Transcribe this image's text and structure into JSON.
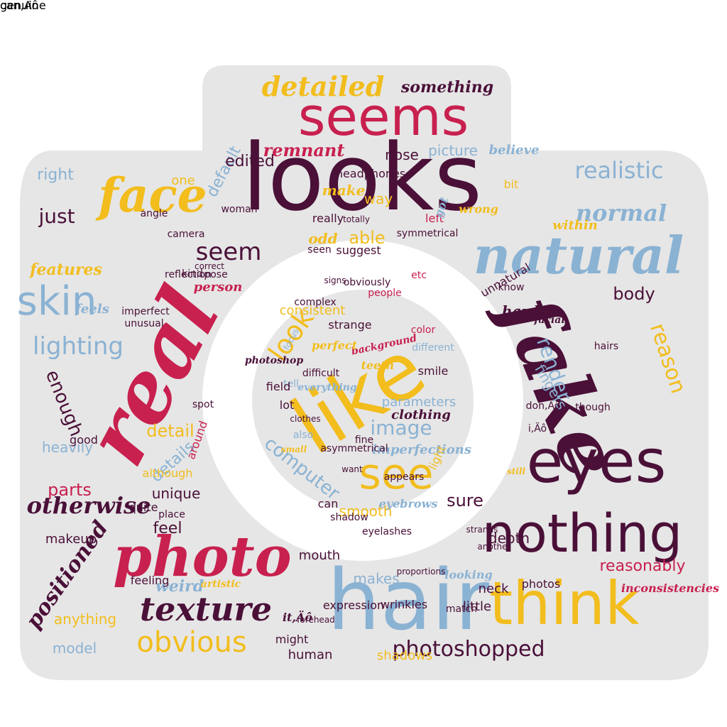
{
  "colors": {
    "background": "#ffffff",
    "camera_fill": "#e6e6e6",
    "crimson": "#c8204f",
    "purple": "#4a1038",
    "gold": "#f2bd1d",
    "blue": "#8ab2d3",
    "mauve": "#b04a6a"
  },
  "words": [
    {
      "t": "looks",
      "c": "purple",
      "s": "plain",
      "a": 0
    },
    {
      "t": "real",
      "c": "crimson",
      "s": "script",
      "a": -62
    },
    {
      "t": "fake",
      "c": "purple",
      "s": "script",
      "a": 68
    },
    {
      "t": "hair",
      "c": "blue",
      "s": "plain",
      "a": 0
    },
    {
      "t": "natural",
      "c": "blue",
      "s": "script",
      "a": 0
    },
    {
      "t": "like",
      "c": "gold",
      "s": "plain",
      "a": -32
    },
    {
      "t": "seems",
      "c": "crimson",
      "s": "plain",
      "a": 0
    },
    {
      "t": "eyes",
      "c": "purple",
      "s": "plain",
      "a": 0
    },
    {
      "t": "nothing",
      "c": "purple",
      "s": "plain",
      "a": 0
    },
    {
      "t": "think",
      "c": "gold",
      "s": "plain",
      "a": 0
    },
    {
      "t": "photo",
      "c": "crimson",
      "s": "script",
      "a": 0
    },
    {
      "t": "face",
      "c": "gold",
      "s": "script",
      "a": 0
    },
    {
      "t": "skin",
      "c": "blue",
      "s": "plain",
      "a": 0
    },
    {
      "t": "texture",
      "c": "purple",
      "s": "script",
      "a": 0
    },
    {
      "t": "obvious",
      "c": "gold",
      "s": "plain",
      "a": 0
    },
    {
      "t": "see",
      "c": "gold",
      "s": "plain",
      "a": 0
    },
    {
      "t": "look",
      "c": "gold",
      "s": "plain",
      "a": -55
    },
    {
      "t": "detailed",
      "c": "gold",
      "s": "script",
      "a": 0
    },
    {
      "t": "lighting",
      "c": "blue",
      "s": "plain",
      "a": 0
    },
    {
      "t": "otherwise",
      "c": "purple",
      "s": "script",
      "a": 0
    },
    {
      "t": "photoshopped",
      "c": "purple",
      "s": "plain",
      "a": 0
    },
    {
      "t": "positioned",
      "c": "purple",
      "s": "script",
      "a": -55
    },
    {
      "t": "reason",
      "c": "gold",
      "s": "plain",
      "a": 72
    },
    {
      "t": "realistic",
      "c": "blue",
      "s": "plain",
      "a": 0
    },
    {
      "t": "normal",
      "c": "blue",
      "s": "script",
      "a": 0
    },
    {
      "t": "reasonably",
      "c": "crimson",
      "s": "plain",
      "a": 0
    },
    {
      "t": "image",
      "c": "blue",
      "s": "plain",
      "a": 0
    },
    {
      "t": "computer",
      "c": "blue",
      "s": "plain",
      "a": 38
    },
    {
      "t": "seem",
      "c": "purple",
      "s": "plain",
      "a": 0
    },
    {
      "t": "just",
      "c": "purple",
      "s": "plain",
      "a": 0
    },
    {
      "t": "default",
      "c": "blue",
      "s": "plain",
      "a": -62
    },
    {
      "t": "remnant",
      "c": "crimson",
      "s": "script",
      "a": 0
    },
    {
      "t": "something",
      "c": "purple",
      "s": "script",
      "a": 0
    },
    {
      "t": "edited",
      "c": "purple",
      "s": "plain",
      "a": 0
    },
    {
      "t": "picture",
      "c": "blue",
      "s": "plain",
      "a": 0
    },
    {
      "t": "believe",
      "c": "blue",
      "s": "script",
      "a": 0
    },
    {
      "t": "nose",
      "c": "purple",
      "s": "plain",
      "a": 0
    },
    {
      "t": "right",
      "c": "blue",
      "s": "plain",
      "a": 0
    },
    {
      "t": "one",
      "c": "gold",
      "s": "plain",
      "a": 0
    },
    {
      "t": "make",
      "c": "gold",
      "s": "script",
      "a": 0
    },
    {
      "t": "way",
      "c": "gold",
      "s": "plain",
      "a": 0
    },
    {
      "t": "wrong",
      "c": "gold",
      "s": "script",
      "a": 0
    },
    {
      "t": "within",
      "c": "gold",
      "s": "script",
      "a": 0
    },
    {
      "t": "features",
      "c": "gold",
      "s": "script",
      "a": 0
    },
    {
      "t": "able",
      "c": "gold",
      "s": "plain",
      "a": 0
    },
    {
      "t": "odd",
      "c": "gold",
      "s": "script",
      "a": 0
    },
    {
      "t": "body",
      "c": "purple",
      "s": "plain",
      "a": 0
    },
    {
      "t": "hard",
      "c": "purple",
      "s": "script",
      "a": 0
    },
    {
      "t": "feels",
      "c": "blue",
      "s": "script",
      "a": 0
    },
    {
      "t": "enough",
      "c": "purple",
      "s": "plain",
      "a": 68
    },
    {
      "t": "detail",
      "c": "gold",
      "s": "plain",
      "a": 0
    },
    {
      "t": "details",
      "c": "blue",
      "s": "plain",
      "a": -42
    },
    {
      "t": "parts",
      "c": "crimson",
      "s": "plain",
      "a": 0
    },
    {
      "t": "heavily",
      "c": "blue",
      "s": "plain",
      "a": 0
    },
    {
      "t": "unique",
      "c": "purple",
      "s": "plain",
      "a": 0
    },
    {
      "t": "feel",
      "c": "purple",
      "s": "plain",
      "a": 0
    },
    {
      "t": "sure",
      "c": "purple",
      "s": "plain",
      "a": 0
    },
    {
      "t": "depth",
      "c": "purple",
      "s": "plain",
      "a": 0
    },
    {
      "t": "render",
      "c": "blue",
      "s": "plain",
      "a": 70
    },
    {
      "t": "fingers",
      "c": "blue",
      "s": "plain",
      "a": 60
    },
    {
      "t": "unnatural",
      "c": "purple",
      "s": "plain",
      "a": -30
    },
    {
      "t": "makeup",
      "c": "purple",
      "s": "plain",
      "a": 0
    },
    {
      "t": "weird",
      "c": "blue",
      "s": "script",
      "a": 0
    },
    {
      "t": "makes",
      "c": "blue",
      "s": "plain",
      "a": 0
    },
    {
      "t": "mouth",
      "c": "purple",
      "s": "plain",
      "a": 0
    },
    {
      "t": "anything",
      "c": "gold",
      "s": "plain",
      "a": 0
    },
    {
      "t": "model",
      "c": "blue",
      "s": "plain",
      "a": 0
    },
    {
      "t": "human",
      "c": "purple",
      "s": "plain",
      "a": 0
    },
    {
      "t": "shadows",
      "c": "gold",
      "s": "plain",
      "a": 0
    },
    {
      "t": "person",
      "c": "crimson",
      "s": "script",
      "a": 0
    },
    {
      "t": "camera",
      "c": "purple",
      "s": "plain",
      "a": 0
    },
    {
      "t": "little",
      "c": "purple",
      "s": "plain",
      "a": 0
    },
    {
      "t": "looking",
      "c": "blue",
      "s": "script",
      "a": 0
    },
    {
      "t": "photos",
      "c": "purple",
      "s": "plain",
      "a": 0
    },
    {
      "t": "neck",
      "c": "purple",
      "s": "plain",
      "a": 0
    },
    {
      "t": "inconsistencies",
      "c": "crimson",
      "s": "script",
      "a": 0
    },
    {
      "t": "smooth",
      "c": "gold",
      "s": "plain",
      "a": 0
    },
    {
      "t": "clothing",
      "c": "purple",
      "s": "script",
      "a": 0
    },
    {
      "t": "consistent",
      "c": "gold",
      "s": "plain",
      "a": 0
    },
    {
      "t": "focus",
      "c": "blue",
      "s": "plain",
      "a": -62
    },
    {
      "t": "strange",
      "c": "purple",
      "s": "plain",
      "a": 0
    },
    {
      "t": "teeth",
      "c": "gold",
      "s": "script",
      "a": 0
    },
    {
      "t": "background",
      "c": "crimson",
      "s": "script",
      "a": -12
    },
    {
      "t": "parameters",
      "c": "blue",
      "s": "plain",
      "a": 0
    },
    {
      "t": "imperfections",
      "c": "blue",
      "s": "script",
      "a": 0
    },
    {
      "t": "eyebrows",
      "c": "blue",
      "s": "script",
      "a": 0
    },
    {
      "t": "lot",
      "c": "purple",
      "s": "plain",
      "a": 0
    },
    {
      "t": "also",
      "c": "blue",
      "s": "plain",
      "a": 0
    },
    {
      "t": "can",
      "c": "purple",
      "s": "plain",
      "a": 0
    },
    {
      "t": "light",
      "c": "gold",
      "s": "plain",
      "a": -65
    },
    {
      "t": "tell",
      "c": "blue",
      "s": "plain",
      "a": 0
    },
    {
      "t": "headphones",
      "c": "purple",
      "s": "plain",
      "a": 0
    },
    {
      "t": "seen",
      "c": "purple",
      "s": "plain",
      "a": 0
    },
    {
      "t": "suggest",
      "c": "purple",
      "s": "plain",
      "a": 0
    },
    {
      "t": "bit",
      "c": "gold",
      "s": "plain",
      "a": 0
    },
    {
      "t": "really",
      "c": "purple",
      "s": "plain",
      "a": 0
    },
    {
      "t": "left",
      "c": "crimson",
      "s": "plain",
      "a": 0
    },
    {
      "t": "got",
      "c": "blue",
      "s": "script",
      "a": -70
    },
    {
      "t": "know",
      "c": "purple",
      "s": "plain",
      "a": 0
    },
    {
      "t": "facial",
      "c": "purple",
      "s": "script",
      "a": 0
    },
    {
      "t": "although",
      "c": "gold",
      "s": "plain",
      "a": 0
    },
    {
      "t": "around",
      "c": "crimson",
      "s": "plain",
      "a": -70
    },
    {
      "t": "good",
      "c": "purple",
      "s": "plain",
      "a": 0
    },
    {
      "t": "quite",
      "c": "purple",
      "s": "plain",
      "a": 0
    },
    {
      "t": "feeling",
      "c": "purple",
      "s": "plain",
      "a": 0
    },
    {
      "t": "expression",
      "c": "purple",
      "s": "plain",
      "a": 0
    },
    {
      "t": "might",
      "c": "purple",
      "s": "plain",
      "a": 0
    },
    {
      "t": "wrinkles",
      "c": "purple",
      "s": "plain",
      "a": 0
    },
    {
      "t": "people",
      "c": "crimson",
      "s": "plain",
      "a": 0
    },
    {
      "t": "color",
      "c": "crimson",
      "s": "plain",
      "a": 0
    },
    {
      "t": "smile",
      "c": "purple",
      "s": "plain",
      "a": 0
    },
    {
      "t": "photoshop",
      "c": "purple",
      "s": "script",
      "a": 0
    },
    {
      "t": "field",
      "c": "purple",
      "s": "plain",
      "a": 0
    },
    {
      "t": "hairs",
      "c": "purple",
      "s": "plain",
      "a": 0
    },
    {
      "t": "though",
      "c": "purple",
      "s": "plain",
      "a": 0
    },
    {
      "t": "etc",
      "c": "crimson",
      "s": "plain",
      "a": 0
    },
    {
      "t": "different",
      "c": "blue",
      "s": "plain",
      "a": 0
    },
    {
      "t": "complex",
      "c": "purple",
      "s": "plain",
      "a": 0
    },
    {
      "t": "everything",
      "c": "blue",
      "s": "script",
      "a": 0
    },
    {
      "t": "perfect",
      "c": "gold",
      "s": "script",
      "a": 0
    },
    {
      "t": "difficult",
      "c": "purple",
      "s": "plain",
      "a": 0
    },
    {
      "t": "spot",
      "c": "purple",
      "s": "plain",
      "a": 0
    },
    {
      "t": "it,Äô",
      "c": "purple",
      "s": "script",
      "a": 0
    },
    {
      "t": "i,Äô",
      "c": "purple",
      "s": "plain",
      "a": 0
    },
    {
      "t": "don,Äô",
      "c": "purple",
      "s": "plain",
      "a": 0
    },
    {
      "t": "angle",
      "c": "purple",
      "s": "plain",
      "a": 0
    },
    {
      "t": "woman",
      "c": "purple",
      "s": "plain",
      "a": 0
    },
    {
      "t": "correct",
      "c": "purple",
      "s": "plain",
      "a": 0
    },
    {
      "t": "pose",
      "c": "purple",
      "s": "plain",
      "a": 0
    },
    {
      "t": "imperfect",
      "c": "purple",
      "s": "plain",
      "a": 0
    },
    {
      "t": "reflection",
      "c": "purple",
      "s": "plain",
      "a": 0
    },
    {
      "t": "unusual",
      "c": "purple",
      "s": "plain",
      "a": 0
    },
    {
      "t": "symmetrical",
      "c": "purple",
      "s": "plain",
      "a": 0
    },
    {
      "t": "appears",
      "c": "purple",
      "s": "plain",
      "a": 0
    },
    {
      "t": "clothes",
      "c": "purple",
      "s": "plain",
      "a": 0
    },
    {
      "t": "totally",
      "c": "purple",
      "s": "plain",
      "a": 0
    },
    {
      "t": "obviously",
      "c": "purple",
      "s": "plain",
      "a": 0
    },
    {
      "t": "signs",
      "c": "purple",
      "s": "plain",
      "a": 0
    },
    {
      "t": "shadow",
      "c": "purple",
      "s": "plain",
      "a": 0
    },
    {
      "t": "eyelashes",
      "c": "purple",
      "s": "plain",
      "a": 0
    },
    {
      "t": "kind",
      "c": "purple",
      "s": "plain",
      "a": 0
    },
    {
      "t": "want",
      "c": "purple",
      "s": "plain",
      "a": 0
    },
    {
      "t": "small",
      "c": "gold",
      "s": "script",
      "a": 0
    },
    {
      "t": "asymmetrical",
      "c": "purple",
      "s": "plain",
      "a": 0
    },
    {
      "t": "fine",
      "c": "purple",
      "s": "plain",
      "a": 0
    },
    {
      "t": "still",
      "c": "gold",
      "s": "script",
      "a": 0
    },
    {
      "t": "strands",
      "c": "purple",
      "s": "plain",
      "a": 0
    },
    {
      "t": "match",
      "c": "purple",
      "s": "plain",
      "a": 0
    },
    {
      "t": "place",
      "c": "purple",
      "s": "plain",
      "a": 0
    },
    {
      "t": "artistic",
      "c": "gold",
      "s": "script",
      "a": 0
    },
    {
      "t": "forehead",
      "c": "purple",
      "s": "plain",
      "a": 0
    },
    {
      "t": "proportions",
      "c": "purple",
      "s": "plain",
      "a": 0
    },
    {
      "t": "another",
      "c": "purple",
      "s": "plain",
      "a": 0
    },
    {
      "t": "can,Äô",
      "c": "purple",
      "s": "plain",
      "a": 0
    },
    {
      "t": "genuine",
      "c": "purple",
      "s": "plain",
      "a": 0
    }
  ]
}
